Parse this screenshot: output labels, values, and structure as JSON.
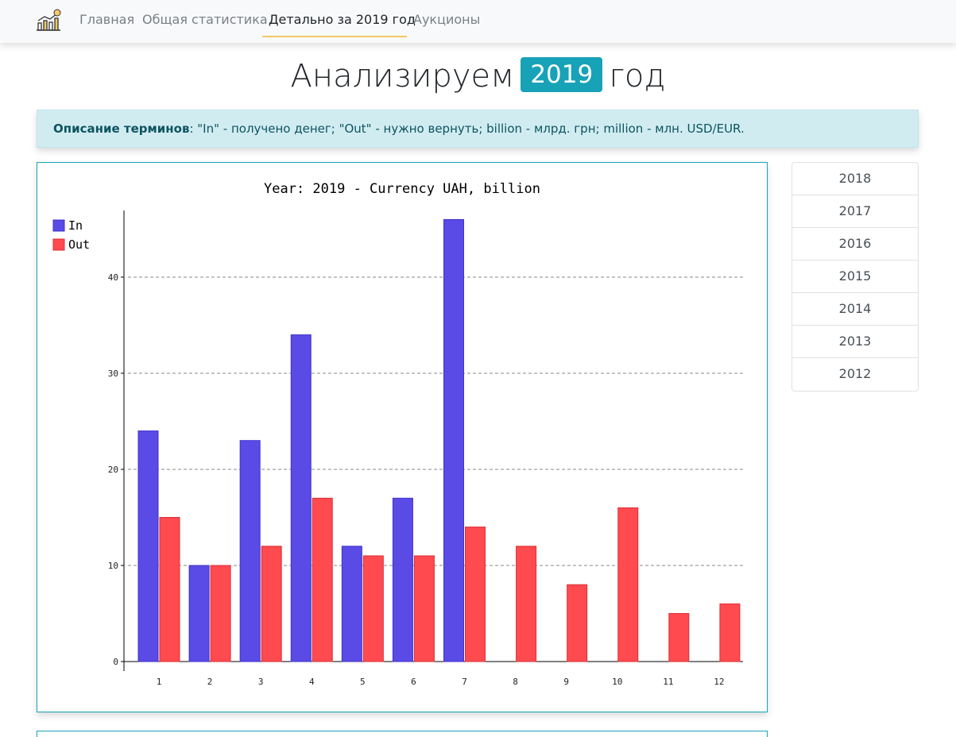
{
  "nav": {
    "items": [
      {
        "label": "Главная"
      },
      {
        "label": "Общая статистика"
      },
      {
        "label": "Детально за 2019 год"
      },
      {
        "label": "Аукционы"
      }
    ],
    "active_index": 2,
    "brand_icon": "chart-coin-logo-icon"
  },
  "heading": {
    "prefix": "Анализируем",
    "year": "2019",
    "suffix": "год"
  },
  "info": {
    "bold": "Описание терминов",
    "text": ": \"In\" - получено денег; \"Out\" - нужно вернуть; billion - млрд. грн; million - млн. USD/EUR."
  },
  "year_list": [
    "2018",
    "2017",
    "2016",
    "2015",
    "2014",
    "2013",
    "2012"
  ],
  "colors": {
    "in": "#5a4be6",
    "out": "#ff4a4f",
    "accent": "#17a2b8",
    "nav_active_underline": "#f4c969"
  },
  "chart_data": {
    "type": "bar",
    "title": "Year: 2019 - Currency UAH, billion",
    "xlabel": "",
    "ylabel": "",
    "categories": [
      "1",
      "2",
      "3",
      "4",
      "5",
      "6",
      "7",
      "8",
      "9",
      "10",
      "11",
      "12"
    ],
    "series": [
      {
        "name": "In",
        "values": [
          24,
          10,
          23,
          34,
          12,
          17,
          46,
          0,
          0,
          0,
          0,
          0
        ]
      },
      {
        "name": "Out",
        "values": [
          15,
          10,
          12,
          17,
          11,
          11,
          14,
          12,
          8,
          16,
          5,
          6
        ]
      }
    ],
    "yticks": [
      0,
      10,
      20,
      30,
      40
    ],
    "ylim": [
      0,
      47
    ],
    "grid": "horizontal dashed",
    "legend": "top-left"
  }
}
